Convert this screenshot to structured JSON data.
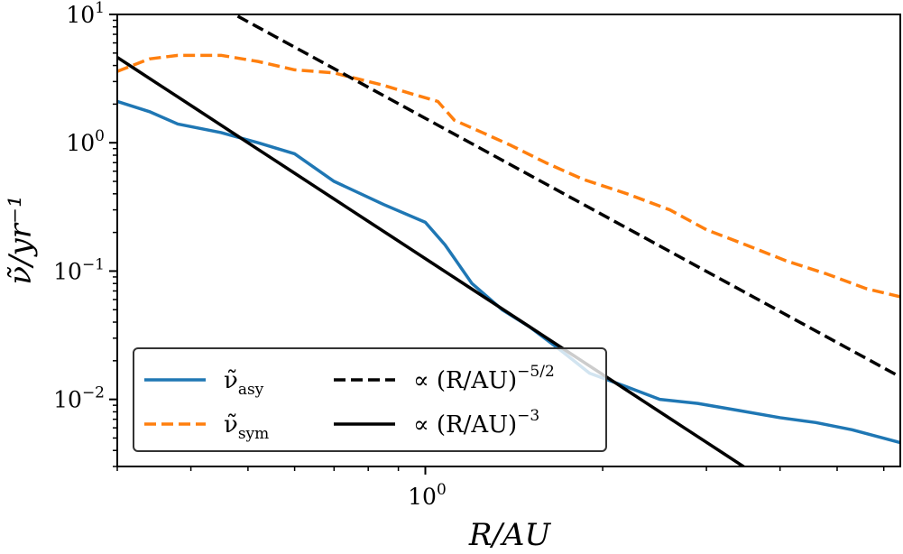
{
  "chart_data": {
    "type": "line",
    "xscale": "log",
    "yscale": "log",
    "xlim": [
      0.3,
      6.4
    ],
    "ylim": [
      0.003,
      10
    ],
    "xlabel": "R/AU",
    "ylabel": "ν̃/yr⁻¹",
    "grid": false,
    "x_ticks": [
      {
        "base": "10",
        "exp": "0",
        "value": 1
      }
    ],
    "y_ticks": [
      {
        "base": "10",
        "exp": "1",
        "value": 10
      },
      {
        "base": "10",
        "exp": "0",
        "value": 1
      },
      {
        "base": "10",
        "exp": "−1",
        "value": 0.1
      },
      {
        "base": "10",
        "exp": "−2",
        "value": 0.01
      }
    ],
    "series": [
      {
        "name": "ν̃_asy",
        "label_main": "ν̃",
        "label_sub": "asy",
        "color": "#1f77b4",
        "dash": "solid",
        "x": [
          0.3,
          0.34,
          0.38,
          0.45,
          0.52,
          0.6,
          0.7,
          0.85,
          1.0,
          1.08,
          1.2,
          1.35,
          1.5,
          1.7,
          1.9,
          2.2,
          2.5,
          2.9,
          3.4,
          4.0,
          4.6,
          5.3,
          6.4
        ],
        "y": [
          2.1,
          1.75,
          1.4,
          1.2,
          1.0,
          0.82,
          0.5,
          0.33,
          0.24,
          0.16,
          0.08,
          0.05,
          0.037,
          0.024,
          0.016,
          0.0125,
          0.01,
          0.0093,
          0.0082,
          0.0072,
          0.0066,
          0.0058,
          0.0046
        ]
      },
      {
        "name": "ν̃_sym",
        "label_main": "ν̃",
        "label_sub": "sym",
        "color": "#ff7f0e",
        "dash": "dashed",
        "x": [
          0.3,
          0.34,
          0.38,
          0.45,
          0.52,
          0.6,
          0.7,
          0.85,
          0.95,
          1.05,
          1.12,
          1.25,
          1.4,
          1.6,
          1.85,
          2.2,
          2.6,
          3.0,
          3.5,
          4.1,
          4.8,
          5.6,
          6.4
        ],
        "y": [
          3.6,
          4.5,
          4.8,
          4.8,
          4.3,
          3.7,
          3.5,
          2.8,
          2.4,
          2.1,
          1.5,
          1.2,
          0.95,
          0.7,
          0.52,
          0.4,
          0.3,
          0.21,
          0.16,
          0.12,
          0.095,
          0.073,
          0.063
        ]
      },
      {
        "name": "∝ (R/AU)^−5/2",
        "label_main": "∝ (R/AU)",
        "label_sup": "−5/2",
        "color": "#000000",
        "dash": "dashed",
        "coef": 1.55,
        "power": -2.5,
        "xrange": [
          0.3,
          6.4
        ]
      },
      {
        "name": "∝ (R/AU)^−3",
        "label_main": "∝ (R/AU)",
        "label_sup": "−3",
        "color": "#000000",
        "dash": "solid",
        "coef": 0.125,
        "power": -3,
        "xrange": [
          0.3,
          6.4
        ]
      }
    ],
    "legend_placement": "lower-left"
  }
}
